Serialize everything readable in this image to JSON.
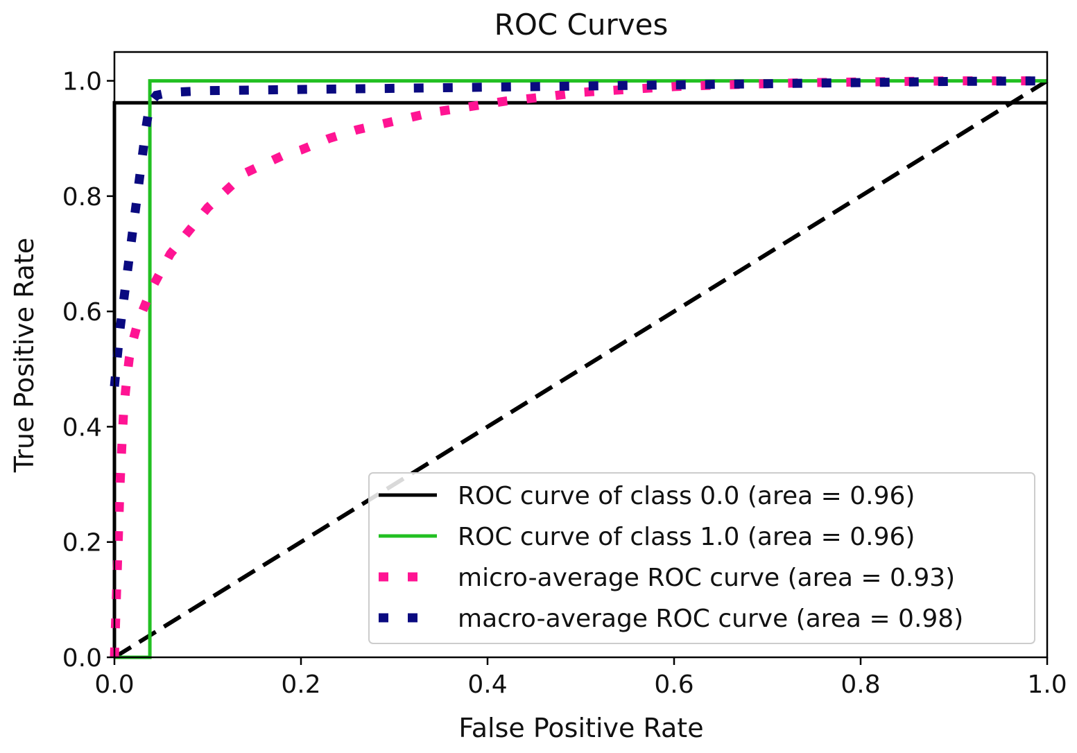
{
  "chart_data": {
    "type": "line",
    "title": "ROC Curves",
    "xlabel": "False Positive Rate",
    "ylabel": "True Positive Rate",
    "xlim": [
      0.0,
      1.0
    ],
    "ylim": [
      0.0,
      1.05
    ],
    "x_ticks": [
      "0.0",
      "0.2",
      "0.4",
      "0.6",
      "0.8",
      "1.0"
    ],
    "y_ticks": [
      "0.0",
      "0.2",
      "0.4",
      "0.6",
      "0.8",
      "1.0"
    ],
    "grid": false,
    "legend_position": "lower-right",
    "series": [
      {
        "name": "ROC curve of class 0.0 (area = 0.96)",
        "color": "#000000",
        "style": "solid",
        "x": [
          0.0,
          0.0,
          1.0
        ],
        "y": [
          0.0,
          0.962,
          0.962
        ]
      },
      {
        "name": "ROC curve of class 1.0 (area = 0.96)",
        "color": "#22c022",
        "style": "solid",
        "x": [
          0.0,
          0.038,
          0.038,
          1.0
        ],
        "y": [
          0.0,
          0.0,
          1.0,
          1.0
        ]
      },
      {
        "name": "micro-average ROC curve (area = 0.93)",
        "color": "#ff1493",
        "style": "dotted",
        "x": [
          0.0,
          0.002,
          0.004,
          0.006,
          0.008,
          0.01,
          0.013,
          0.016,
          0.02,
          0.025,
          0.03,
          0.035,
          0.04,
          0.05,
          0.06,
          0.07,
          0.08,
          0.09,
          0.1,
          0.12,
          0.14,
          0.16,
          0.18,
          0.2,
          0.23,
          0.26,
          0.3,
          0.34,
          0.38,
          0.42,
          0.46,
          0.5,
          0.55,
          0.6,
          0.65,
          0.7,
          0.75,
          0.8,
          0.85,
          0.9,
          0.95,
          1.0
        ],
        "y": [
          0.0,
          0.1,
          0.2,
          0.3,
          0.37,
          0.43,
          0.48,
          0.52,
          0.55,
          0.58,
          0.6,
          0.62,
          0.64,
          0.67,
          0.7,
          0.72,
          0.74,
          0.76,
          0.78,
          0.81,
          0.84,
          0.855,
          0.87,
          0.88,
          0.9,
          0.915,
          0.93,
          0.945,
          0.955,
          0.965,
          0.972,
          0.98,
          0.985,
          0.99,
          0.993,
          0.995,
          0.997,
          0.998,
          0.999,
          1.0,
          1.0,
          1.0
        ]
      },
      {
        "name": "macro-average ROC curve (area = 0.98)",
        "color": "#0a0a80",
        "style": "dotted",
        "x": [
          0.0,
          0.003,
          0.006,
          0.01,
          0.014,
          0.018,
          0.022,
          0.026,
          0.03,
          0.034,
          0.038,
          0.045,
          0.06,
          0.1,
          0.2,
          0.3,
          0.4,
          0.5,
          0.6,
          0.7,
          0.8,
          0.9,
          1.0
        ],
        "y": [
          0.47,
          0.52,
          0.57,
          0.62,
          0.67,
          0.72,
          0.77,
          0.82,
          0.87,
          0.92,
          0.96,
          0.975,
          0.98,
          0.983,
          0.985,
          0.987,
          0.989,
          0.991,
          0.993,
          0.995,
          0.997,
          0.999,
          1.0
        ]
      },
      {
        "name": "",
        "color": "#000000",
        "style": "dashed",
        "x": [
          0.0,
          1.0
        ],
        "y": [
          0.0,
          1.0
        ]
      }
    ]
  }
}
